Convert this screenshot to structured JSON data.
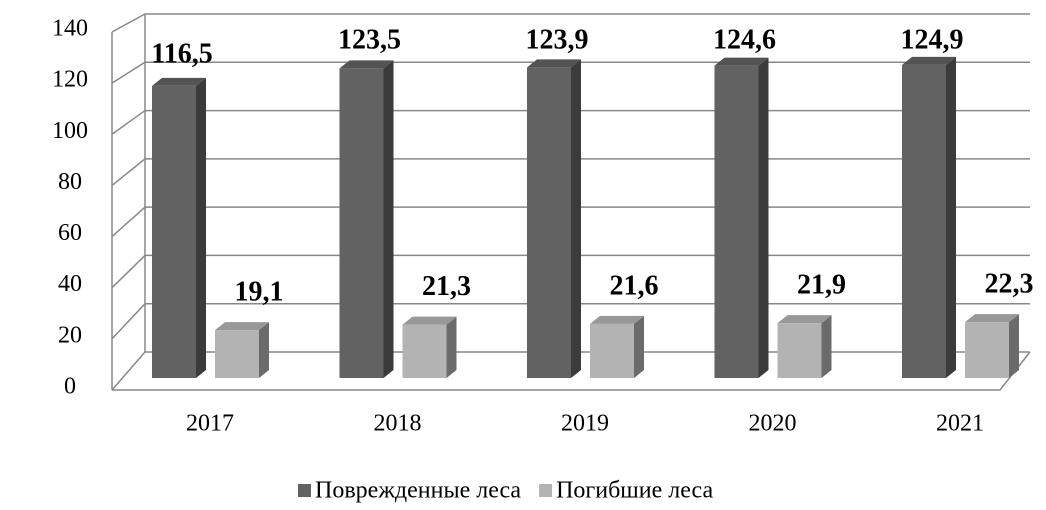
{
  "chart_data": {
    "type": "bar3d",
    "categories": [
      "2017",
      "2018",
      "2019",
      "2020",
      "2021"
    ],
    "series": [
      {
        "name": "Поврежденные леса",
        "color": "#626262",
        "values": [
          116.5,
          123.5,
          123.9,
          124.6,
          124.9
        ],
        "value_labels": [
          "116,5",
          "123,5",
          "123,9",
          "124,6",
          "124,9"
        ]
      },
      {
        "name": "Погибшие леса",
        "color": "#b3b3b3",
        "values": [
          19.1,
          21.3,
          21.6,
          21.9,
          22.3
        ],
        "value_labels": [
          "19,1",
          "21,3",
          "21,6",
          "21,9",
          "22,3"
        ]
      }
    ],
    "ylim": [
      0,
      140
    ],
    "yticks": [
      0,
      20,
      40,
      60,
      80,
      100,
      120,
      140
    ],
    "grid": true,
    "legend": "bottom"
  }
}
